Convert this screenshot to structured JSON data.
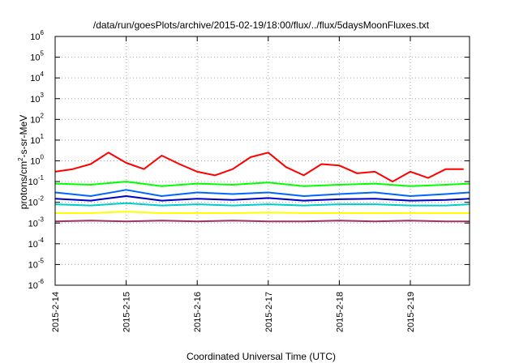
{
  "chart_data": {
    "type": "line",
    "title": "/data/run/goesPlots/archive/2015-02-19/18:00/flux/../flux/5daysMoonFluxes.txt",
    "xlabel": "Coordinated Universal Time (UTC)",
    "ylabel": {
      "base": "protons/cm",
      "sup": "2",
      "rest": "-s-sr-MeV"
    },
    "y_scale": "log",
    "ylim": [
      1e-06,
      1000000.0
    ],
    "xlim": [
      "2015-02-14 00:00",
      "2015-02-19 20:00"
    ],
    "x_ticks": [
      "2015-2-14",
      "2015-2-15",
      "2015-2-16",
      "2015-2-17",
      "2015-2-18",
      "2015-2-19"
    ],
    "y_ticks": [
      {
        "base": "10",
        "exp": "6"
      },
      {
        "base": "10",
        "exp": "5"
      },
      {
        "base": "10",
        "exp": "4"
      },
      {
        "base": "10",
        "exp": "3"
      },
      {
        "base": "10",
        "exp": "2"
      },
      {
        "base": "10",
        "exp": "1"
      },
      {
        "base": "10",
        "exp": "0"
      },
      {
        "base": "10",
        "exp": "-1"
      },
      {
        "base": "10",
        "exp": "-2"
      },
      {
        "base": "10",
        "exp": "-3"
      },
      {
        "base": "10",
        "exp": "-4"
      },
      {
        "base": "10",
        "exp": "-5"
      },
      {
        "base": "10",
        "exp": "-6"
      }
    ],
    "grid": true,
    "legend": "none",
    "series": [
      {
        "color": "#ff0000",
        "x": [
          "2015-02-14 00:00",
          "2015-02-14 06:00",
          "2015-02-14 12:00",
          "2015-02-14 18:00",
          "2015-02-15 00:00",
          "2015-02-15 06:00",
          "2015-02-15 12:00",
          "2015-02-15 18:00",
          "2015-02-16 00:00",
          "2015-02-16 06:00",
          "2015-02-16 12:00",
          "2015-02-16 18:00",
          "2015-02-17 00:00",
          "2015-02-17 06:00",
          "2015-02-17 12:00",
          "2015-02-17 18:00",
          "2015-02-18 00:00",
          "2015-02-18 06:00",
          "2015-02-18 12:00",
          "2015-02-18 18:00",
          "2015-02-19 00:00",
          "2015-02-19 06:00",
          "2015-02-19 12:00",
          "2015-02-19 18:00"
        ],
        "y": [
          0.3,
          0.4,
          0.7,
          2.5,
          0.8,
          0.4,
          1.8,
          0.7,
          0.3,
          0.2,
          0.4,
          1.5,
          2.5,
          0.5,
          0.2,
          0.7,
          0.6,
          0.25,
          0.3,
          0.1,
          0.3,
          0.15,
          0.4,
          0.4
        ]
      },
      {
        "color": "#00ff00",
        "x": [
          "2015-02-14 00:00",
          "2015-02-14 12:00",
          "2015-02-15 00:00",
          "2015-02-15 12:00",
          "2015-02-16 00:00",
          "2015-02-16 12:00",
          "2015-02-17 00:00",
          "2015-02-17 12:00",
          "2015-02-18 00:00",
          "2015-02-18 12:00",
          "2015-02-19 00:00",
          "2015-02-19 12:00",
          "2015-02-19 20:00"
        ],
        "y": [
          0.08,
          0.07,
          0.1,
          0.06,
          0.08,
          0.07,
          0.09,
          0.06,
          0.07,
          0.08,
          0.06,
          0.07,
          0.08
        ]
      },
      {
        "color": "#0066ff",
        "x": [
          "2015-02-14 00:00",
          "2015-02-14 12:00",
          "2015-02-15 00:00",
          "2015-02-15 12:00",
          "2015-02-16 00:00",
          "2015-02-16 12:00",
          "2015-02-17 00:00",
          "2015-02-17 12:00",
          "2015-02-18 00:00",
          "2015-02-18 12:00",
          "2015-02-19 00:00",
          "2015-02-19 12:00",
          "2015-02-19 20:00"
        ],
        "y": [
          0.03,
          0.02,
          0.04,
          0.02,
          0.03,
          0.025,
          0.03,
          0.02,
          0.025,
          0.03,
          0.02,
          0.025,
          0.03
        ]
      },
      {
        "color": "#0000c0",
        "x": [
          "2015-02-14 00:00",
          "2015-02-14 12:00",
          "2015-02-15 00:00",
          "2015-02-15 12:00",
          "2015-02-16 00:00",
          "2015-02-16 12:00",
          "2015-02-17 00:00",
          "2015-02-17 12:00",
          "2015-02-18 00:00",
          "2015-02-18 12:00",
          "2015-02-19 00:00",
          "2015-02-19 12:00",
          "2015-02-19 20:00"
        ],
        "y": [
          0.015,
          0.012,
          0.02,
          0.012,
          0.015,
          0.013,
          0.016,
          0.012,
          0.014,
          0.015,
          0.012,
          0.013,
          0.015
        ]
      },
      {
        "color": "#00cccc",
        "x": [
          "2015-02-14 00:00",
          "2015-02-14 12:00",
          "2015-02-15 00:00",
          "2015-02-15 12:00",
          "2015-02-16 00:00",
          "2015-02-16 12:00",
          "2015-02-17 00:00",
          "2015-02-17 12:00",
          "2015-02-18 00:00",
          "2015-02-18 12:00",
          "2015-02-19 00:00",
          "2015-02-19 12:00",
          "2015-02-19 20:00"
        ],
        "y": [
          0.008,
          0.007,
          0.009,
          0.007,
          0.008,
          0.007,
          0.008,
          0.007,
          0.008,
          0.008,
          0.007,
          0.007,
          0.008
        ]
      },
      {
        "color": "#ffff00",
        "x": [
          "2015-02-14 00:00",
          "2015-02-14 12:00",
          "2015-02-15 00:00",
          "2015-02-15 12:00",
          "2015-02-16 00:00",
          "2015-02-16 12:00",
          "2015-02-17 00:00",
          "2015-02-17 12:00",
          "2015-02-18 00:00",
          "2015-02-18 12:00",
          "2015-02-19 00:00",
          "2015-02-19 12:00",
          "2015-02-19 20:00"
        ],
        "y": [
          0.003,
          0.003,
          0.0035,
          0.003,
          0.003,
          0.003,
          0.0032,
          0.003,
          0.003,
          0.003,
          0.003,
          0.003,
          0.003
        ]
      },
      {
        "color": "#993366",
        "x": [
          "2015-02-14 00:00",
          "2015-02-14 12:00",
          "2015-02-15 00:00",
          "2015-02-15 12:00",
          "2015-02-16 00:00",
          "2015-02-16 12:00",
          "2015-02-17 00:00",
          "2015-02-17 12:00",
          "2015-02-18 00:00",
          "2015-02-18 12:00",
          "2015-02-19 00:00",
          "2015-02-19 12:00",
          "2015-02-19 20:00"
        ],
        "y": [
          0.0012,
          0.0013,
          0.0012,
          0.0013,
          0.0012,
          0.0013,
          0.0012,
          0.0012,
          0.0013,
          0.0012,
          0.0013,
          0.0012,
          0.0012
        ]
      }
    ]
  }
}
